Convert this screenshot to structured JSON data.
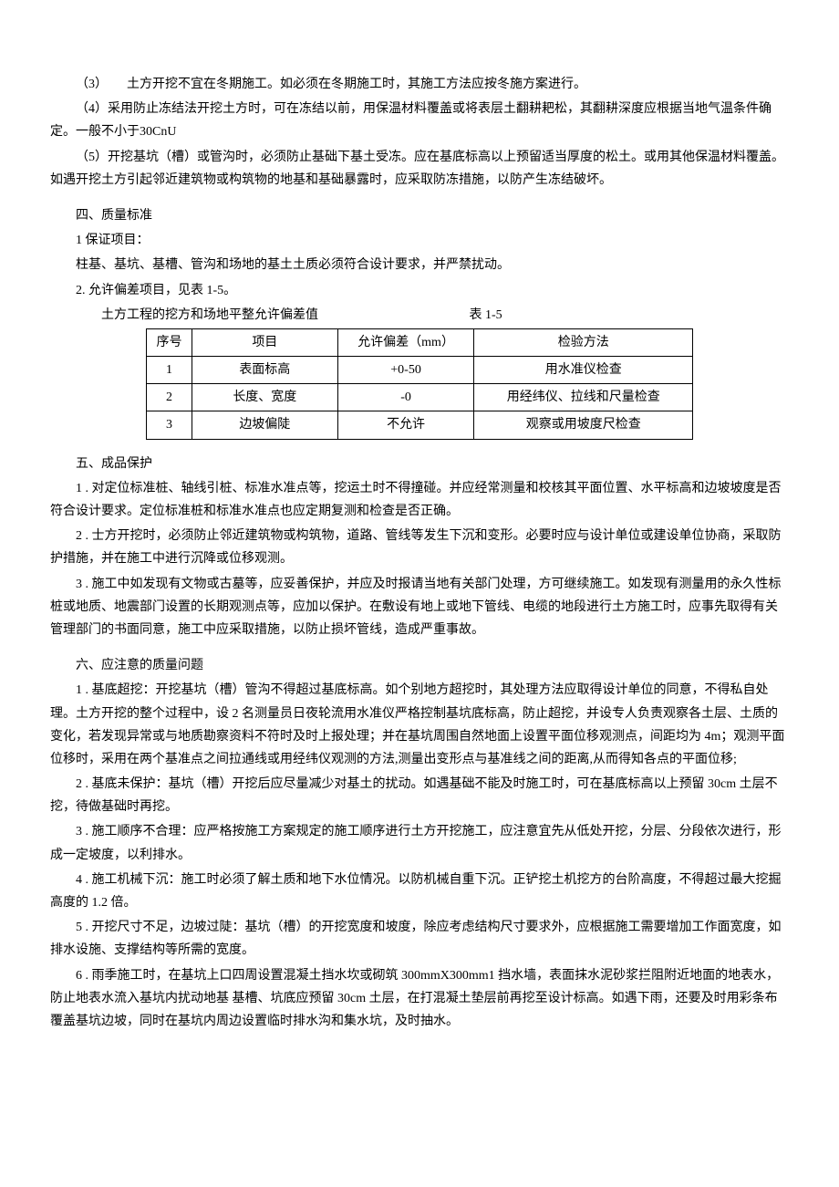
{
  "p1": "（3）　　土方开挖不宜在冬期施工。如必须在冬期施工时，其施工方法应按冬施方案进行。",
  "p2": "（4）采用防止冻结法开挖土方时，可在冻结以前，用保温材料覆盖或将表层土翻耕耙松，其翻耕深度应根据当地气温条件确定。一般不小于30CnU",
  "p3": "（5）开挖基坑（槽）或管沟时，必须防止基础下基土受冻。应在基底标高以上预留适当厚度的松土。或用其他保温材料覆盖。如遇开挖土方引起邻近建筑物或构筑物的地基和基础暴露时，应采取防冻措施，以防产生冻结破坏。",
  "s4_title": "四、质量标准",
  "s4_1": "1 保证项目：",
  "s4_1_text": "柱基、基坑、基槽、管沟和场地的基土土质必须符合设计要求，并严禁扰动。",
  "s4_2": "2. 允许偏差项目，见表 1-5。",
  "table_caption_label": "土方工程的挖方和场地平整允许偏差值",
  "table_caption_num": "表 1-5",
  "table": {
    "headers": [
      "序号",
      "项目",
      "允许偏差（mm）",
      "检验方法"
    ],
    "rows": [
      [
        "1",
        "表面标高",
        "+0-50",
        "用水准仪检查"
      ],
      [
        "2",
        "长度、宽度",
        "-0",
        "用经纬仪、拉线和尺量检查"
      ],
      [
        "3",
        "边坡偏陡",
        "不允许",
        "观察或用坡度尺检查"
      ]
    ]
  },
  "s5_title": "五、成品保护",
  "s5_1": "1 . 对定位标准桩、轴线引桩、标准水准点等，挖运土时不得撞碰。并应经常测量和校核其平面位置、水平标高和边坡坡度是否符合设计要求。定位标准桩和标准水准点也应定期复测和检查是否正确。",
  "s5_2": "2 . 士方开挖时，必须防止邻近建筑物或构筑物，道路、管线等发生下沉和变形。必要时应与设计单位或建设单位协商，采取防护措施，并在施工中进行沉降或位移观测。",
  "s5_3": "3 . 施工中如发现有文物或古墓等，应妥善保护，并应及时报请当地有关部门处理，方可继续施工。如发现有测量用的永久性标桩或地质、地震部门设置的长期观测点等，应加以保护。在敷设有地上或地下管线、电缆的地段进行土方施工时，应事先取得有关管理部门的书面同意，施工中应采取措施，以防止损坏管线，造成严重事故。",
  "s6_title": "六、应注意的质量问题",
  "s6_1": "1 . 基底超挖：开挖基坑（槽）管沟不得超过基底标高。如个别地方超挖时，其处理方法应取得设计单位的同意，不得私自处理。土方开挖的整个过程中，设 2 名测量员日夜轮流用水准仪严格控制基坑底标高，防止超挖，并设专人负责观察各土层、土质的变化，若发现异常或与地质勘察资料不符时及时上报处理；并在基坑周围自然地面上设置平面位移观测点，间距均为 4m；观测平面位移时，采用在两个基准点之间拉通线或用经纬仪观测的方法,测量出变形点与基准线之间的距离,从而得知各点的平面位移;",
  "s6_2": "2 . 基底未保护：基坑（槽）开挖后应尽量减少对基土的扰动。如遇基础不能及时施工时，可在基底标高以上预留 30cm 土层不挖，待做基础时再挖。",
  "s6_3": "3 . 施工顺序不合理：应严格按施工方案规定的施工顺序进行土方开挖施工，应注意宜先从低处开挖，分层、分段依次进行，形成一定坡度，以利排水。",
  "s6_4": "4 . 施工机械下沉：施工时必须了解土质和地下水位情况。以防机械自重下沉。正铲挖土机挖方的台阶高度，不得超过最大挖掘高度的 1.2 倍。",
  "s6_5": "5 . 开挖尺寸不足，边坡过陡：基坑（槽）的开挖宽度和坡度，除应考虑结构尺寸要求外，应根据施工需要增加工作面宽度，如排水设施、支撑结构等所需的宽度。",
  "s6_6": "6 . 雨季施工时，在基坑上口四周设置混凝土挡水坎或砌筑 300mmX300mm1 挡水墙，表面抹水泥砂浆拦阻附近地面的地表水，防止地表水流入基坑内扰动地基 基槽、坑底应预留 30cm 土层，在打混凝土垫层前再挖至设计标高。如遇下雨，还要及时用彩条布覆盖基坑边坡，同时在基坑内周边设置临时排水沟和集水坑，及时抽水。"
}
